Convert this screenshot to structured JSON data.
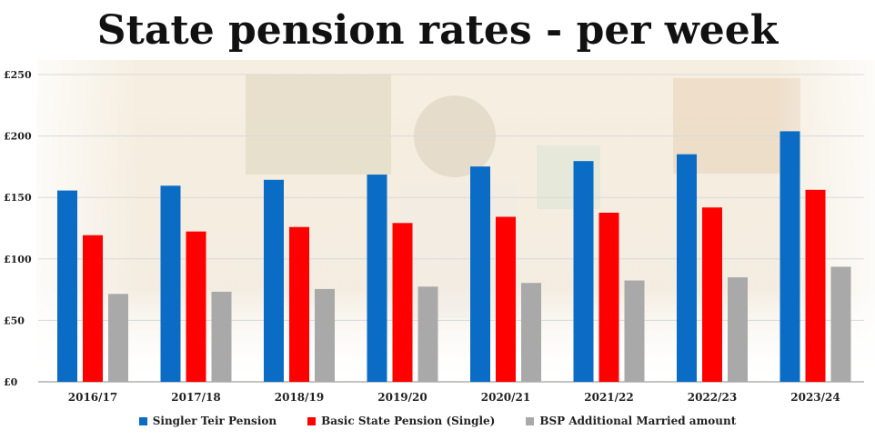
{
  "chart_data": {
    "type": "bar",
    "title": "State pension rates - per week",
    "xlabel": "",
    "ylabel": "",
    "ylim": [
      0,
      250
    ],
    "yticks": [
      0,
      50,
      100,
      150,
      200,
      250
    ],
    "ytick_labels": [
      "£0",
      "£50",
      "£100",
      "£150",
      "£200",
      "£250"
    ],
    "grid": true,
    "legend_position": "bottom",
    "categories": [
      "2016/17",
      "2017/18",
      "2018/19",
      "2019/20",
      "2020/21",
      "2021/22",
      "2022/23",
      "2023/24"
    ],
    "series": [
      {
        "name": "Singler Teir Pension",
        "color": "#0a6cc4",
        "values": [
          155.65,
          159.55,
          164.35,
          168.6,
          175.2,
          179.6,
          185.15,
          203.85
        ]
      },
      {
        "name": "Basic State Pension (Single)",
        "color": "#ff0000",
        "values": [
          119.3,
          122.3,
          125.95,
          129.2,
          134.25,
          137.6,
          141.85,
          156.2
        ]
      },
      {
        "name": "BSP Additional Married amount",
        "color": "#a9a9a9",
        "values": [
          71.5,
          73.3,
          75.5,
          77.45,
          80.45,
          82.45,
          85.0,
          93.6
        ]
      }
    ]
  }
}
